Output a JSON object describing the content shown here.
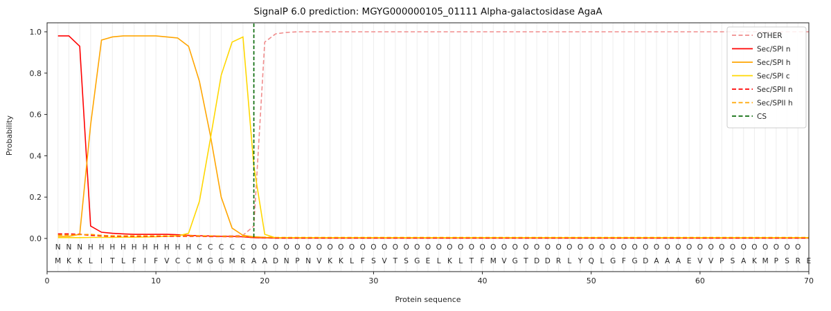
{
  "chart_data": {
    "type": "line",
    "title": "SignalP 6.0 prediction: MGYG000000105_01111 Alpha-galactosidase AgaA",
    "xlabel": "Protein sequence",
    "ylabel": "Probability",
    "xlim": [
      0,
      70
    ],
    "ylim": [
      0,
      1.05
    ],
    "xticks": [
      0,
      10,
      20,
      30,
      40,
      50,
      60,
      70
    ],
    "yticks": [
      "0.0",
      "0.2",
      "0.4",
      "0.6",
      "0.8",
      "1.0"
    ],
    "grid": "vertical-line-per-residue",
    "legend_position": "upper right",
    "n_positions": 70,
    "sequence": "MKKLITLFIFVCCMGGMRAADNPNVKKLFSVTSGELKLTFMVGTDDRLYQLGFGDAAAEVVPSAKMPSRE",
    "region_labels": "NNNHHHHHHHHHHCCCCCOOOOOOOOOOOOOOOOOOOOOOOOOOOOOOOOOOOOOOOOOOOOOOOOOOO",
    "region_colors": {
      "N": "#ff0000",
      "H": "#ffa500",
      "C": "#ffd700",
      "O": "#9a9a9a"
    },
    "cs": {
      "label": "CS",
      "position": 19,
      "color": "#0a6b0a",
      "dash": true
    },
    "series": [
      {
        "name": "OTHER",
        "color": "#f08c8c",
        "dash": true,
        "values": [
          0.02,
          0.02,
          0.02,
          0.018,
          0.015,
          0.012,
          0.012,
          0.012,
          0.012,
          0.012,
          0.012,
          0.012,
          0.012,
          0.012,
          0.012,
          0.012,
          0.013,
          0.015,
          0.06,
          0.95,
          0.99,
          0.997,
          1,
          1,
          1,
          1,
          1,
          1,
          1,
          1,
          1,
          1,
          1,
          1,
          1,
          1,
          1,
          1,
          1,
          1,
          1,
          1,
          1,
          1,
          1,
          1,
          1,
          1,
          1,
          1,
          1,
          1,
          1,
          1,
          1,
          1,
          1,
          1,
          1,
          1,
          1,
          1,
          1,
          1,
          1,
          1,
          1,
          1,
          1,
          1
        ]
      },
      {
        "name": "Sec/SPI n",
        "color": "#ff0000",
        "dash": false,
        "values": [
          0.98,
          0.98,
          0.93,
          0.06,
          0.03,
          0.025,
          0.022,
          0.02,
          0.02,
          0.02,
          0.02,
          0.018,
          0.015,
          0.013,
          0.012,
          0.01,
          0.01,
          0.008,
          0.004,
          0.003,
          0.002,
          0.002,
          0.002,
          0.002,
          0.002,
          0.002,
          0.002,
          0.002,
          0.002,
          0.002,
          0.002,
          0.002,
          0.002,
          0.002,
          0.002,
          0.002,
          0.002,
          0.002,
          0.002,
          0.002,
          0.002,
          0.002,
          0.002,
          0.002,
          0.002,
          0.002,
          0.002,
          0.002,
          0.002,
          0.002,
          0.002,
          0.002,
          0.002,
          0.002,
          0.002,
          0.002,
          0.002,
          0.002,
          0.002,
          0.002,
          0.002,
          0.002,
          0.002,
          0.002,
          0.002,
          0.002,
          0.002,
          0.002,
          0.002,
          0.002
        ]
      },
      {
        "name": "Sec/SPI h",
        "color": "#ffa500",
        "dash": false,
        "values": [
          0.01,
          0.01,
          0.02,
          0.55,
          0.96,
          0.975,
          0.98,
          0.98,
          0.98,
          0.98,
          0.975,
          0.97,
          0.93,
          0.76,
          0.5,
          0.2,
          0.05,
          0.015,
          0.008,
          0.005,
          0.004,
          0.004,
          0.004,
          0.004,
          0.004,
          0.004,
          0.004,
          0.004,
          0.004,
          0.004,
          0.004,
          0.004,
          0.004,
          0.004,
          0.004,
          0.004,
          0.004,
          0.004,
          0.004,
          0.004,
          0.004,
          0.004,
          0.004,
          0.004,
          0.004,
          0.004,
          0.004,
          0.004,
          0.004,
          0.004,
          0.004,
          0.004,
          0.004,
          0.004,
          0.004,
          0.004,
          0.004,
          0.004,
          0.004,
          0.004,
          0.004,
          0.004,
          0.004,
          0.004,
          0.004,
          0.004,
          0.004,
          0.004,
          0.004,
          0.004
        ]
      },
      {
        "name": "Sec/SPI c",
        "color": "#ffd700",
        "dash": false,
        "values": [
          0.004,
          0.004,
          0.004,
          0.005,
          0.005,
          0.005,
          0.006,
          0.006,
          0.007,
          0.008,
          0.01,
          0.012,
          0.025,
          0.18,
          0.48,
          0.79,
          0.95,
          0.975,
          0.35,
          0.02,
          0.003,
          0.003,
          0.003,
          0.003,
          0.003,
          0.003,
          0.003,
          0.003,
          0.003,
          0.003,
          0.003,
          0.003,
          0.003,
          0.003,
          0.003,
          0.003,
          0.003,
          0.003,
          0.003,
          0.003,
          0.003,
          0.003,
          0.003,
          0.003,
          0.003,
          0.003,
          0.003,
          0.003,
          0.003,
          0.003,
          0.003,
          0.003,
          0.003,
          0.003,
          0.003,
          0.003,
          0.003,
          0.003,
          0.003,
          0.003,
          0.003,
          0.003,
          0.003,
          0.003,
          0.003,
          0.003,
          0.003,
          0.003,
          0.003,
          0.003
        ]
      },
      {
        "name": "Sec/SPII n",
        "color": "#ff0000",
        "dash": true,
        "values": [
          0.022,
          0.022,
          0.02,
          0.015,
          0.012,
          0.01,
          0.01,
          0.01,
          0.01,
          0.01,
          0.01,
          0.01,
          0.01,
          0.01,
          0.009,
          0.009,
          0.008,
          0.008,
          0.004,
          0.003,
          0.002,
          0.002,
          0.002,
          0.002,
          0.002,
          0.002,
          0.002,
          0.002,
          0.002,
          0.002,
          0.002,
          0.002,
          0.002,
          0.002,
          0.002,
          0.002,
          0.002,
          0.002,
          0.002,
          0.002,
          0.002,
          0.002,
          0.002,
          0.002,
          0.002,
          0.002,
          0.002,
          0.002,
          0.002,
          0.002,
          0.002,
          0.002,
          0.002,
          0.002,
          0.002,
          0.002,
          0.002,
          0.002,
          0.002,
          0.002,
          0.002,
          0.002,
          0.002,
          0.002,
          0.002,
          0.002,
          0.002,
          0.002,
          0.002,
          0.002
        ]
      },
      {
        "name": "Sec/SPII h",
        "color": "#ffa500",
        "dash": true,
        "values": [
          0.016,
          0.016,
          0.018,
          0.02,
          0.015,
          0.013,
          0.013,
          0.013,
          0.013,
          0.013,
          0.013,
          0.013,
          0.013,
          0.012,
          0.012,
          0.011,
          0.01,
          0.01,
          0.007,
          0.006,
          0.005,
          0.005,
          0.005,
          0.005,
          0.005,
          0.005,
          0.005,
          0.005,
          0.005,
          0.005,
          0.005,
          0.005,
          0.005,
          0.005,
          0.005,
          0.005,
          0.005,
          0.005,
          0.005,
          0.005,
          0.005,
          0.005,
          0.005,
          0.005,
          0.005,
          0.005,
          0.005,
          0.005,
          0.005,
          0.005,
          0.005,
          0.005,
          0.005,
          0.005,
          0.005,
          0.005,
          0.005,
          0.005,
          0.005,
          0.005,
          0.005,
          0.005,
          0.005,
          0.005,
          0.005,
          0.005,
          0.005,
          0.005,
          0.005,
          0.005
        ]
      }
    ]
  }
}
